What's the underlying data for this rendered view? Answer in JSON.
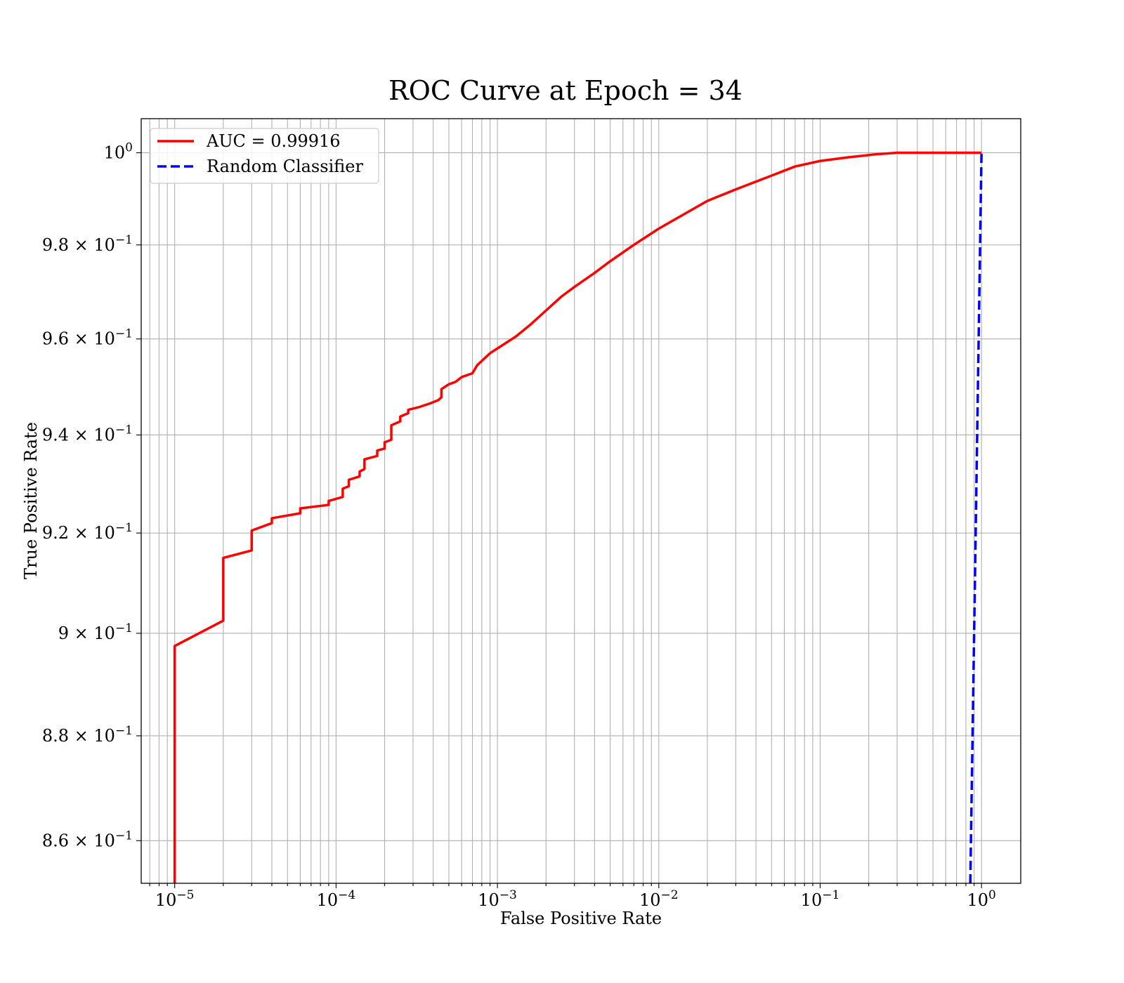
{
  "chart_data": {
    "type": "line",
    "title": "ROC Curve at Epoch = 34",
    "xlabel": "False Positive Rate",
    "ylabel": "True Positive Rate",
    "xscale": "log",
    "yscale": "log",
    "xlim": [
      6.2e-06,
      1.75
    ],
    "ylim": [
      0.852,
      1.0075
    ],
    "grid": true,
    "legend_position": "upper left",
    "x_ticks": [
      {
        "value": 1e-05,
        "base": "10",
        "exp": "−5"
      },
      {
        "value": 0.0001,
        "base": "10",
        "exp": "−4"
      },
      {
        "value": 0.001,
        "base": "10",
        "exp": "−3"
      },
      {
        "value": 0.01,
        "base": "10",
        "exp": "−2"
      },
      {
        "value": 0.1,
        "base": "10",
        "exp": "−1"
      },
      {
        "value": 1,
        "base": "10",
        "exp": "0"
      }
    ],
    "y_ticks": [
      {
        "value": 1.0,
        "base": "10",
        "exp": "0"
      },
      {
        "value": 0.98,
        "base": "9.8 × 10",
        "exp": "−1"
      },
      {
        "value": 0.96,
        "base": "9.6 × 10",
        "exp": "−1"
      },
      {
        "value": 0.94,
        "base": "9.4 × 10",
        "exp": "−1"
      },
      {
        "value": 0.92,
        "base": "9.2 × 10",
        "exp": "−1"
      },
      {
        "value": 0.9,
        "base": "9 × 10",
        "exp": "−1"
      },
      {
        "value": 0.88,
        "base": "8.8 × 10",
        "exp": "−1"
      },
      {
        "value": 0.86,
        "base": "8.6 × 10",
        "exp": "−1"
      }
    ],
    "series": [
      {
        "name": "AUC = 0.99916",
        "color": "#ff0000",
        "style": "solid",
        "points": [
          [
            1e-05,
            0.852
          ],
          [
            1e-05,
            0.8625
          ],
          [
            1e-05,
            0.8975
          ],
          [
            2e-05,
            0.9025
          ],
          [
            2e-05,
            0.915
          ],
          [
            3e-05,
            0.9165
          ],
          [
            3e-05,
            0.9205
          ],
          [
            4e-05,
            0.922
          ],
          [
            4e-05,
            0.923
          ],
          [
            6e-05,
            0.924
          ],
          [
            6e-05,
            0.925
          ],
          [
            9e-05,
            0.9257
          ],
          [
            9e-05,
            0.9265
          ],
          [
            0.00011,
            0.9273
          ],
          [
            0.00011,
            0.929
          ],
          [
            0.00012,
            0.9295
          ],
          [
            0.00012,
            0.9308
          ],
          [
            0.00014,
            0.9315
          ],
          [
            0.00014,
            0.9325
          ],
          [
            0.00015,
            0.933
          ],
          [
            0.00015,
            0.935
          ],
          [
            0.00018,
            0.9357
          ],
          [
            0.00018,
            0.9368
          ],
          [
            0.0002,
            0.9372
          ],
          [
            0.0002,
            0.9385
          ],
          [
            0.00022,
            0.939
          ],
          [
            0.00022,
            0.942
          ],
          [
            0.00025,
            0.9428
          ],
          [
            0.00025,
            0.9438
          ],
          [
            0.00028,
            0.9445
          ],
          [
            0.00028,
            0.9452
          ],
          [
            0.00033,
            0.9458
          ],
          [
            0.00038,
            0.9465
          ],
          [
            0.00043,
            0.9472
          ],
          [
            0.00045,
            0.9478
          ],
          [
            0.00045,
            0.9495
          ],
          [
            0.0005,
            0.9505
          ],
          [
            0.00055,
            0.951
          ],
          [
            0.0006,
            0.952
          ],
          [
            0.0007,
            0.9528
          ],
          [
            0.00075,
            0.9545
          ],
          [
            0.0009,
            0.957
          ],
          [
            0.001,
            0.958
          ],
          [
            0.0013,
            0.9605
          ],
          [
            0.0016,
            0.963
          ],
          [
            0.002,
            0.966
          ],
          [
            0.0025,
            0.969
          ],
          [
            0.003,
            0.971
          ],
          [
            0.004,
            0.974
          ],
          [
            0.005,
            0.9765
          ],
          [
            0.007,
            0.98
          ],
          [
            0.01,
            0.9835
          ],
          [
            0.015,
            0.987
          ],
          [
            0.02,
            0.9895
          ],
          [
            0.03,
            0.992
          ],
          [
            0.05,
            0.995
          ],
          [
            0.07,
            0.997
          ],
          [
            0.1,
            0.9982
          ],
          [
            0.15,
            0.999
          ],
          [
            0.22,
            0.99965
          ],
          [
            0.3,
            1.0
          ],
          [
            1.0,
            1.0
          ]
        ]
      },
      {
        "name": "Random Classifier",
        "color": "#0000ff",
        "style": "dashed",
        "points": [
          [
            0.852,
            0.852
          ],
          [
            1.0,
            1.0
          ]
        ]
      }
    ]
  }
}
